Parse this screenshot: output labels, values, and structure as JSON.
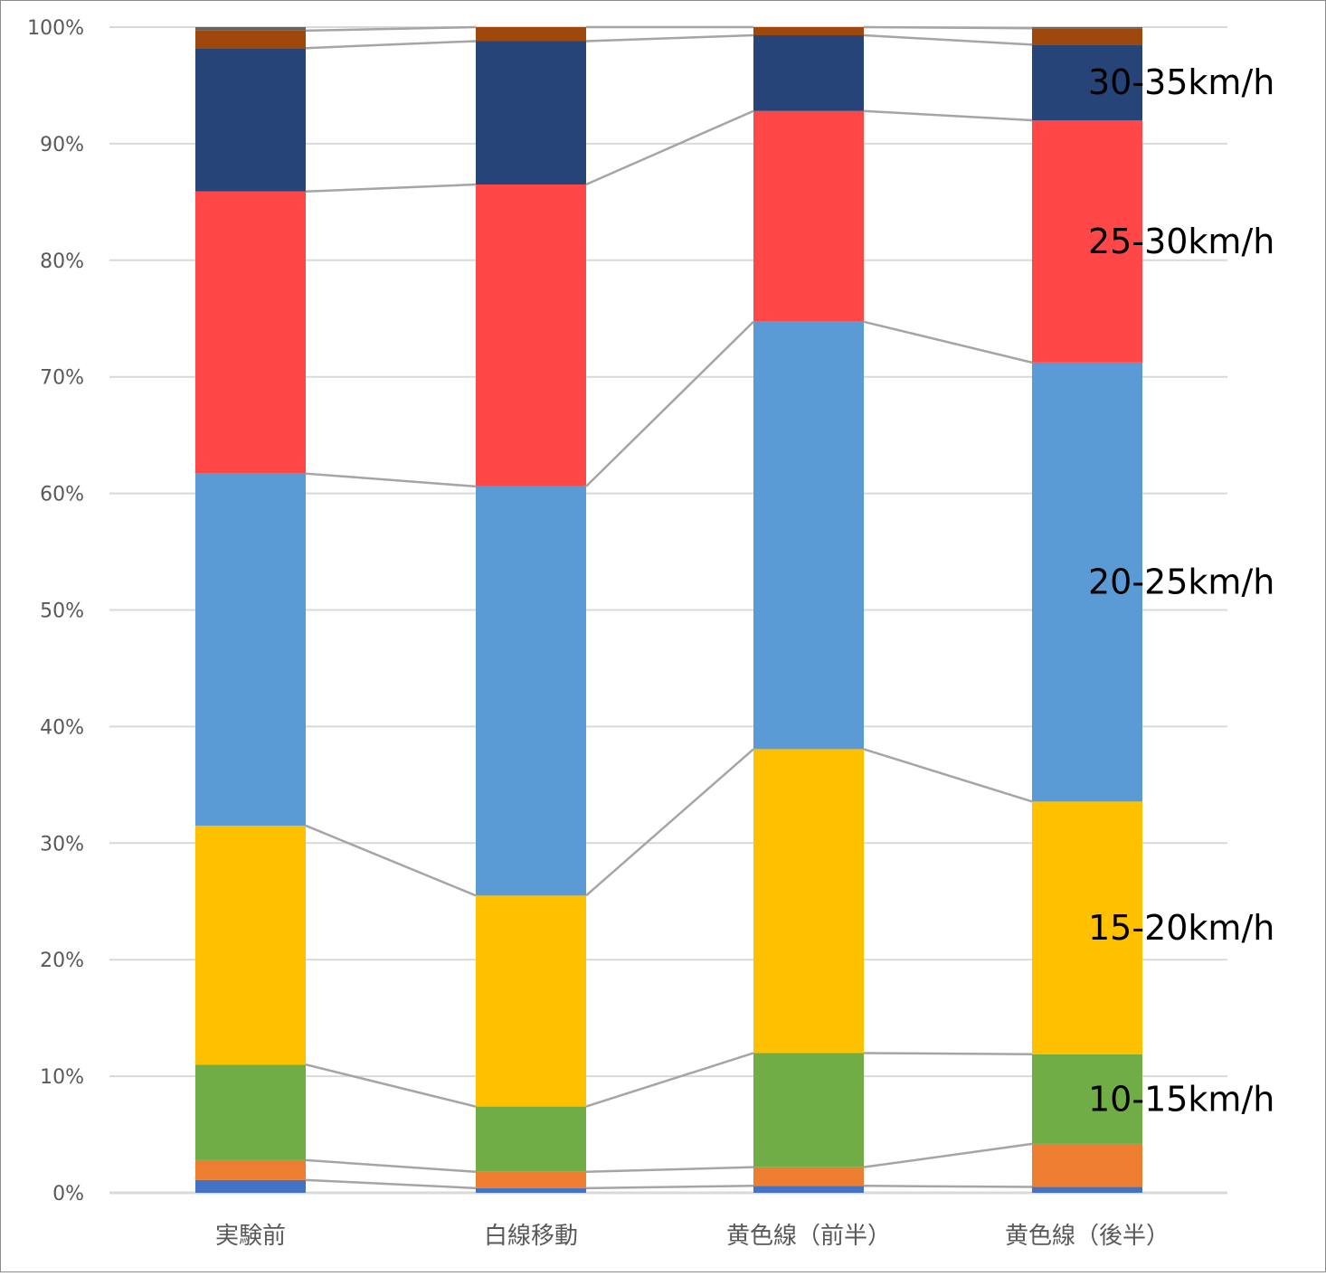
{
  "chart_data": {
    "type": "bar",
    "stacked": true,
    "percent_stacked": true,
    "categories": [
      "実験前",
      "白線移動",
      "黄色線（前半）",
      "黄色線（後半）"
    ],
    "series": [
      {
        "name": "",
        "color": "#4472C4",
        "values": [
          1.1,
          0.4,
          0.6,
          0.5
        ]
      },
      {
        "name": "",
        "color": "#ED7D31",
        "values": [
          1.7,
          1.4,
          1.6,
          3.7
        ]
      },
      {
        "name": "10-15km/h",
        "color": "#70AD47",
        "values": [
          8.2,
          5.6,
          9.8,
          7.7
        ]
      },
      {
        "name": "15-20km/h",
        "color": "#FFC000",
        "values": [
          20.5,
          18.1,
          26.1,
          21.7
        ]
      },
      {
        "name": "20-25km/h",
        "color": "#5B9BD5",
        "values": [
          30.2,
          35.1,
          36.7,
          37.7
        ]
      },
      {
        "name": "25-30km/h",
        "color": "#FF4747",
        "values": [
          24.2,
          25.9,
          18.1,
          20.8
        ]
      },
      {
        "name": "30-35km/h",
        "color": "#264478",
        "values": [
          12.3,
          12.3,
          6.5,
          6.5
        ]
      },
      {
        "name": "",
        "color": "#9E480E",
        "values": [
          1.5,
          1.2,
          0.7,
          1.4
        ]
      },
      {
        "name": "",
        "color": "#636363",
        "values": [
          0.3,
          0.0,
          0.0,
          0.1
        ]
      }
    ],
    "y_ticks": [
      "0%",
      "10%",
      "20%",
      "30%",
      "40%",
      "50%",
      "60%",
      "70%",
      "80%",
      "90%",
      "100%"
    ],
    "ylim": [
      0,
      100
    ],
    "grid": true,
    "series_lines": true,
    "legend": "none",
    "direct_labels_on": "last-category",
    "colors": {
      "grid": "#d9d9d9",
      "connector": "#a5a5a5",
      "axis": "#d9d9d9"
    }
  }
}
